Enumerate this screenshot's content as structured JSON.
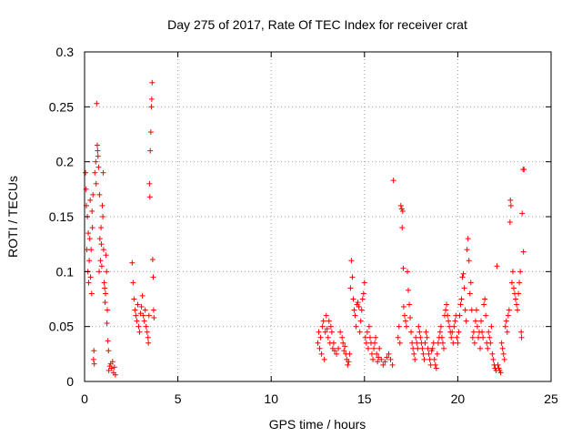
{
  "chart_data": {
    "type": "scatter",
    "title": "Day 275 of 2017, Rate Of TEC Index for receiver crat",
    "xlabel": "GPS time / hours",
    "ylabel": "ROTI / TECUs",
    "xlim": [
      0,
      25
    ],
    "ylim": [
      0,
      0.3
    ],
    "xticks": [
      0,
      5,
      10,
      15,
      20,
      25
    ],
    "yticks": [
      0,
      0.05,
      0.1,
      0.15,
      0.2,
      0.25,
      0.3
    ],
    "grid": true,
    "marker": "plus",
    "color": "#ff0000",
    "series": [
      {
        "points": [
          [
            0.05,
            0.19
          ],
          [
            0.08,
            0.175
          ],
          [
            0.1,
            0.16
          ],
          [
            0.12,
            0.12
          ],
          [
            0.15,
            0.15
          ],
          [
            0.18,
            0.1
          ],
          [
            0.2,
            0.135
          ],
          [
            0.22,
            0.09
          ],
          [
            0.25,
            0.11
          ],
          [
            0.28,
            0.13
          ],
          [
            0.3,
            0.165
          ],
          [
            0.32,
            0.095
          ],
          [
            0.35,
            0.12
          ],
          [
            0.38,
            0.08
          ],
          [
            0.4,
            0.155
          ],
          [
            0.42,
            0.14
          ],
          [
            0.45,
            0.17
          ],
          [
            0.48,
            0.02
          ],
          [
            0.5,
            0.028
          ],
          [
            0.52,
            0.016
          ],
          [
            0.55,
            0.19
          ],
          [
            0.6,
            0.2
          ],
          [
            0.62,
            0.18
          ],
          [
            0.65,
            0.253
          ],
          [
            0.68,
            0.215
          ],
          [
            0.7,
            0.21
          ],
          [
            0.72,
            0.205
          ],
          [
            0.75,
            0.195
          ],
          [
            0.78,
            0.1
          ],
          [
            0.8,
            0.17
          ],
          [
            0.82,
            0.13
          ],
          [
            0.85,
            0.11
          ],
          [
            0.88,
            0.14
          ],
          [
            0.9,
            0.125
          ],
          [
            0.92,
            0.105
          ],
          [
            0.95,
            0.16
          ],
          [
            0.98,
            0.15
          ],
          [
            1.0,
            0.19
          ],
          [
            1.02,
            0.12
          ],
          [
            1.05,
            0.09
          ],
          [
            1.08,
            0.085
          ],
          [
            1.1,
            0.072
          ],
          [
            1.12,
            0.08
          ],
          [
            1.15,
            0.115
          ],
          [
            1.18,
            0.1
          ],
          [
            1.2,
            0.053
          ],
          [
            1.22,
            0.065
          ],
          [
            1.25,
            0.037
          ],
          [
            1.28,
            0.028
          ],
          [
            1.3,
            0.01
          ],
          [
            1.35,
            0.014
          ],
          [
            1.4,
            0.016
          ],
          [
            1.45,
            0.012
          ],
          [
            1.5,
            0.018
          ],
          [
            1.55,
            0.008
          ],
          [
            1.6,
            0.013
          ],
          [
            1.65,
            0.006
          ],
          [
            2.55,
            0.108
          ],
          [
            2.6,
            0.09
          ],
          [
            2.65,
            0.075
          ],
          [
            2.7,
            0.065
          ],
          [
            2.75,
            0.06
          ],
          [
            2.8,
            0.055
          ],
          [
            2.85,
            0.07
          ],
          [
            2.9,
            0.05
          ],
          [
            2.95,
            0.045
          ],
          [
            3.0,
            0.062
          ],
          [
            3.05,
            0.068
          ],
          [
            3.1,
            0.078
          ],
          [
            3.15,
            0.06
          ],
          [
            3.2,
            0.055
          ],
          [
            3.25,
            0.065
          ],
          [
            3.3,
            0.05
          ],
          [
            3.35,
            0.045
          ],
          [
            3.4,
            0.04
          ],
          [
            3.42,
            0.035
          ],
          [
            3.45,
            0.06
          ],
          [
            3.48,
            0.18
          ],
          [
            3.5,
            0.168
          ],
          [
            3.52,
            0.21
          ],
          [
            3.55,
            0.227
          ],
          [
            3.58,
            0.25
          ],
          [
            3.6,
            0.257
          ],
          [
            3.62,
            0.272
          ],
          [
            3.65,
            0.111
          ],
          [
            3.68,
            0.095
          ],
          [
            3.7,
            0.065
          ],
          [
            3.72,
            0.058
          ],
          [
            12.5,
            0.035
          ],
          [
            12.55,
            0.045
          ],
          [
            12.6,
            0.03
          ],
          [
            12.65,
            0.04
          ],
          [
            12.7,
            0.025
          ],
          [
            12.75,
            0.05
          ],
          [
            12.8,
            0.055
          ],
          [
            12.85,
            0.02
          ],
          [
            12.9,
            0.045
          ],
          [
            12.95,
            0.06
          ],
          [
            13.0,
            0.048
          ],
          [
            13.05,
            0.04
          ],
          [
            13.1,
            0.055
          ],
          [
            13.15,
            0.035
          ],
          [
            13.2,
            0.05
          ],
          [
            13.25,
            0.045
          ],
          [
            13.3,
            0.03
          ],
          [
            13.35,
            0.035
          ],
          [
            13.4,
            0.028
          ],
          [
            13.5,
            0.025
          ],
          [
            13.6,
            0.03
          ],
          [
            13.7,
            0.045
          ],
          [
            13.8,
            0.04
          ],
          [
            13.85,
            0.035
          ],
          [
            13.9,
            0.028
          ],
          [
            13.95,
            0.032
          ],
          [
            14.0,
            0.025
          ],
          [
            14.05,
            0.02
          ],
          [
            14.1,
            0.015
          ],
          [
            14.15,
            0.018
          ],
          [
            14.2,
            0.025
          ],
          [
            14.25,
            0.085
          ],
          [
            14.3,
            0.11
          ],
          [
            14.35,
            0.095
          ],
          [
            14.4,
            0.075
          ],
          [
            14.45,
            0.065
          ],
          [
            14.5,
            0.06
          ],
          [
            14.55,
            0.05
          ],
          [
            14.6,
            0.07
          ],
          [
            14.65,
            0.072
          ],
          [
            14.7,
            0.068
          ],
          [
            14.75,
            0.045
          ],
          [
            14.8,
            0.055
          ],
          [
            14.85,
            0.065
          ],
          [
            14.9,
            0.075
          ],
          [
            14.95,
            0.08
          ],
          [
            15.0,
            0.09
          ],
          [
            15.05,
            0.04
          ],
          [
            15.1,
            0.035
          ],
          [
            15.15,
            0.045
          ],
          [
            15.2,
            0.03
          ],
          [
            15.25,
            0.05
          ],
          [
            15.3,
            0.04
          ],
          [
            15.35,
            0.035
          ],
          [
            15.4,
            0.025
          ],
          [
            15.45,
            0.02
          ],
          [
            15.5,
            0.03
          ],
          [
            15.55,
            0.035
          ],
          [
            15.6,
            0.04
          ],
          [
            15.65,
            0.025
          ],
          [
            15.7,
            0.018
          ],
          [
            15.75,
            0.022
          ],
          [
            15.8,
            0.03
          ],
          [
            15.9,
            0.02
          ],
          [
            16.0,
            0.015
          ],
          [
            16.1,
            0.018
          ],
          [
            16.2,
            0.022
          ],
          [
            16.3,
            0.025
          ],
          [
            16.4,
            0.02
          ],
          [
            16.5,
            0.015
          ],
          [
            16.55,
            0.183
          ],
          [
            16.8,
            0.04
          ],
          [
            16.85,
            0.05
          ],
          [
            16.9,
            0.035
          ],
          [
            16.95,
            0.16
          ],
          [
            17.0,
            0.157
          ],
          [
            17.02,
            0.14
          ],
          [
            17.05,
            0.155
          ],
          [
            17.08,
            0.103
          ],
          [
            17.1,
            0.068
          ],
          [
            17.15,
            0.06
          ],
          [
            17.2,
            0.055
          ],
          [
            17.25,
            0.05
          ],
          [
            17.3,
            0.1
          ],
          [
            17.35,
            0.083
          ],
          [
            17.4,
            0.07
          ],
          [
            17.45,
            0.058
          ],
          [
            17.5,
            0.045
          ],
          [
            17.55,
            0.035
          ],
          [
            17.6,
            0.03
          ],
          [
            17.65,
            0.025
          ],
          [
            17.7,
            0.02
          ],
          [
            17.75,
            0.04
          ],
          [
            17.8,
            0.035
          ],
          [
            17.85,
            0.03
          ],
          [
            17.9,
            0.05
          ],
          [
            17.95,
            0.045
          ],
          [
            18.0,
            0.04
          ],
          [
            18.05,
            0.035
          ],
          [
            18.1,
            0.03
          ],
          [
            18.15,
            0.025
          ],
          [
            18.2,
            0.02
          ],
          [
            18.25,
            0.035
          ],
          [
            18.3,
            0.045
          ],
          [
            18.35,
            0.04
          ],
          [
            18.4,
            0.03
          ],
          [
            18.45,
            0.025
          ],
          [
            18.5,
            0.02
          ],
          [
            18.55,
            0.015
          ],
          [
            18.6,
            0.028
          ],
          [
            18.65,
            0.03
          ],
          [
            18.7,
            0.035
          ],
          [
            18.75,
            0.02
          ],
          [
            18.8,
            0.015
          ],
          [
            18.85,
            0.012
          ],
          [
            18.9,
            0.025
          ],
          [
            18.95,
            0.035
          ],
          [
            19.0,
            0.04
          ],
          [
            19.05,
            0.045
          ],
          [
            19.1,
            0.05
          ],
          [
            19.15,
            0.04
          ],
          [
            19.2,
            0.035
          ],
          [
            19.25,
            0.03
          ],
          [
            19.3,
            0.06
          ],
          [
            19.35,
            0.065
          ],
          [
            19.4,
            0.07
          ],
          [
            19.45,
            0.06
          ],
          [
            19.5,
            0.055
          ],
          [
            19.55,
            0.05
          ],
          [
            19.6,
            0.045
          ],
          [
            19.65,
            0.04
          ],
          [
            19.7,
            0.045
          ],
          [
            19.75,
            0.035
          ],
          [
            19.8,
            0.05
          ],
          [
            19.85,
            0.055
          ],
          [
            19.9,
            0.06
          ],
          [
            19.95,
            0.04
          ],
          [
            20.0,
            0.035
          ],
          [
            20.05,
            0.045
          ],
          [
            20.1,
            0.06
          ],
          [
            20.15,
            0.07
          ],
          [
            20.2,
            0.075
          ],
          [
            20.25,
            0.095
          ],
          [
            20.3,
            0.098
          ],
          [
            20.35,
            0.085
          ],
          [
            20.4,
            0.065
          ],
          [
            20.45,
            0.055
          ],
          [
            20.5,
            0.12
          ],
          [
            20.55,
            0.13
          ],
          [
            20.6,
            0.11
          ],
          [
            20.65,
            0.08
          ],
          [
            20.7,
            0.09
          ],
          [
            20.75,
            0.065
          ],
          [
            20.8,
            0.04
          ],
          [
            20.85,
            0.045
          ],
          [
            20.9,
            0.035
          ],
          [
            20.95,
            0.055
          ],
          [
            21.0,
            0.065
          ],
          [
            21.05,
            0.05
          ],
          [
            21.1,
            0.04
          ],
          [
            21.15,
            0.045
          ],
          [
            21.2,
            0.03
          ],
          [
            21.25,
            0.055
          ],
          [
            21.3,
            0.045
          ],
          [
            21.35,
            0.04
          ],
          [
            21.4,
            0.07
          ],
          [
            21.45,
            0.075
          ],
          [
            21.5,
            0.06
          ],
          [
            21.55,
            0.035
          ],
          [
            21.6,
            0.03
          ],
          [
            21.65,
            0.045
          ],
          [
            21.7,
            0.04
          ],
          [
            21.75,
            0.035
          ],
          [
            21.8,
            0.05
          ],
          [
            21.85,
            0.025
          ],
          [
            21.9,
            0.02
          ],
          [
            21.95,
            0.015
          ],
          [
            22.0,
            0.012
          ],
          [
            22.05,
            0.01
          ],
          [
            22.1,
            0.105
          ],
          [
            22.15,
            0.015
          ],
          [
            22.2,
            0.012
          ],
          [
            22.25,
            0.01
          ],
          [
            22.3,
            0.008
          ],
          [
            22.35,
            0.035
          ],
          [
            22.4,
            0.03
          ],
          [
            22.45,
            0.025
          ],
          [
            22.5,
            0.02
          ],
          [
            22.55,
            0.05
          ],
          [
            22.6,
            0.055
          ],
          [
            22.65,
            0.045
          ],
          [
            22.7,
            0.06
          ],
          [
            22.75,
            0.065
          ],
          [
            22.8,
            0.145
          ],
          [
            22.82,
            0.165
          ],
          [
            22.85,
            0.16
          ],
          [
            22.9,
            0.09
          ],
          [
            22.95,
            0.1
          ],
          [
            23.0,
            0.085
          ],
          [
            23.05,
            0.08
          ],
          [
            23.1,
            0.075
          ],
          [
            23.15,
            0.07
          ],
          [
            23.2,
            0.065
          ],
          [
            23.25,
            0.08
          ],
          [
            23.3,
            0.09
          ],
          [
            23.35,
            0.1
          ],
          [
            23.4,
            0.045
          ],
          [
            23.42,
            0.04
          ],
          [
            23.45,
            0.153
          ],
          [
            23.5,
            0.193
          ],
          [
            23.55,
            0.193
          ],
          [
            23.52,
            0.118
          ]
        ]
      }
    ]
  }
}
